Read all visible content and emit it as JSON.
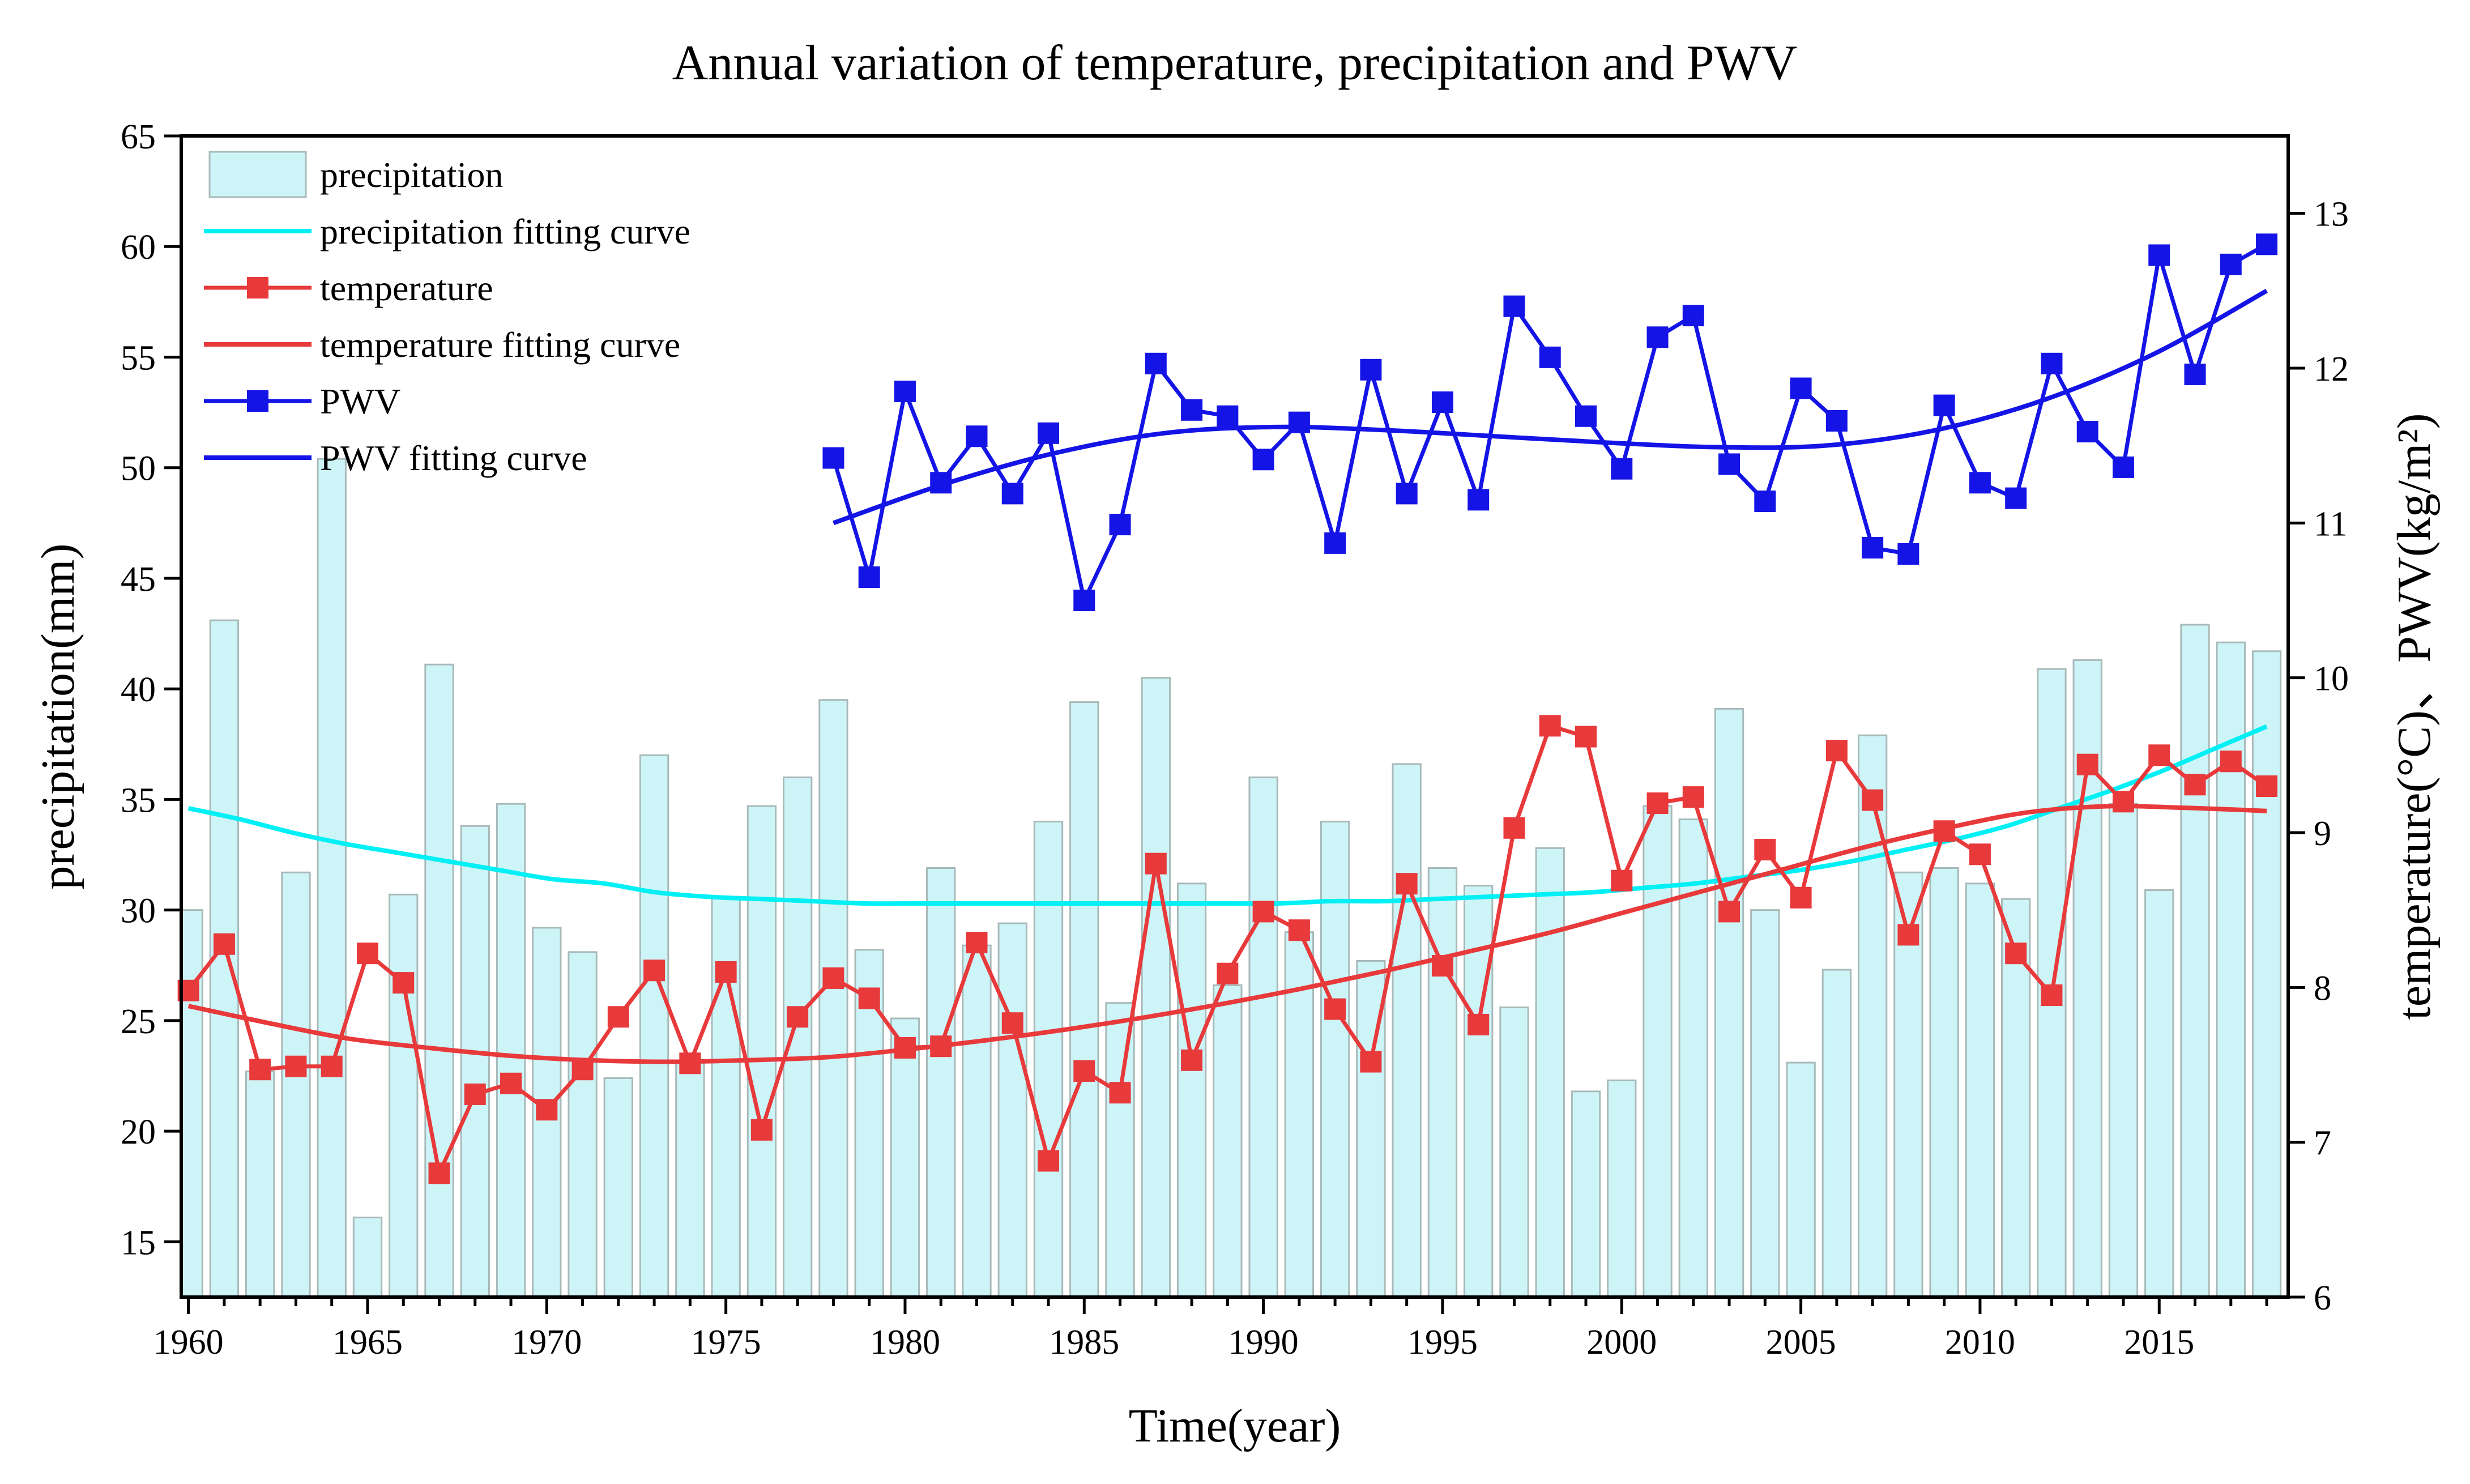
{
  "chart_data": {
    "type": "bar+line",
    "title": "Annual variation of temperature, precipitation and PWV",
    "xlabel": "Time(year)",
    "ylabel_left": "precipitation(mm)",
    "ylabel_right": "temperature(°C)、PWV(kg/m²)",
    "xlim": [
      1959.8,
      2018.6
    ],
    "ylim_left": [
      12.5,
      65
    ],
    "ylim_right": [
      6,
      13.5
    ],
    "x_ticks": [
      1960,
      1965,
      1970,
      1975,
      1980,
      1985,
      1990,
      1995,
      2000,
      2005,
      2010,
      2015
    ],
    "y_left_ticks": [
      15,
      20,
      25,
      30,
      35,
      40,
      45,
      50,
      55,
      60,
      65
    ],
    "y_right_ticks": [
      6,
      7,
      8,
      9,
      10,
      11,
      12,
      13
    ],
    "colors": {
      "precipitation": "#cdf5f7",
      "precipitation_fit": "#00f0f5",
      "temperature": "#e8393b",
      "pwv": "#1414e6"
    },
    "legend": [
      "precipitation",
      "precipitation fitting curve",
      "temperature",
      "temperature fitting curve",
      "PWV",
      "PWV fitting curve"
    ],
    "legend_position": "top-left",
    "years": [
      1960,
      1961,
      1962,
      1963,
      1964,
      1965,
      1966,
      1967,
      1968,
      1969,
      1970,
      1971,
      1972,
      1973,
      1974,
      1975,
      1976,
      1977,
      1978,
      1979,
      1980,
      1981,
      1982,
      1983,
      1984,
      1985,
      1986,
      1987,
      1988,
      1989,
      1990,
      1991,
      1992,
      1993,
      1994,
      1995,
      1996,
      1997,
      1998,
      1999,
      2000,
      2001,
      2002,
      2003,
      2004,
      2005,
      2006,
      2007,
      2008,
      2009,
      2010,
      2011,
      2012,
      2013,
      2014,
      2015,
      2016,
      2017,
      2018
    ],
    "series": [
      {
        "name": "precipitation",
        "axis": "left",
        "kind": "bar",
        "values": [
          30.0,
          43.1,
          22.7,
          31.7,
          50.4,
          16.1,
          30.7,
          41.1,
          33.8,
          34.8,
          29.2,
          28.1,
          22.4,
          37.0,
          23.1,
          30.6,
          34.7,
          36.0,
          39.5,
          28.2,
          25.1,
          31.9,
          28.4,
          29.4,
          34.0,
          39.4,
          25.8,
          40.5,
          31.2,
          26.6,
          36.0,
          29.0,
          34.0,
          27.7,
          36.6,
          31.9,
          31.1,
          25.6,
          32.8,
          21.8,
          22.3,
          34.7,
          34.1,
          39.1,
          30.0,
          23.1,
          27.3,
          37.9,
          31.7,
          31.9,
          31.2,
          30.5,
          40.9,
          41.3,
          34.8,
          30.9,
          42.9,
          42.1,
          41.7
        ]
      },
      {
        "name": "precipitation fitting curve",
        "axis": "left",
        "kind": "fit",
        "values": [
          34.6,
          34.1,
          33.5,
          33.0,
          32.6,
          32.2,
          31.8,
          31.4,
          31.2,
          30.8,
          30.6,
          30.5,
          30.4,
          30.3,
          30.3,
          30.3,
          30.3,
          30.3,
          30.3,
          30.3,
          30.3,
          30.3,
          30.4,
          30.4,
          30.5,
          30.6,
          30.7,
          30.8,
          31.0,
          31.2,
          31.5,
          31.8,
          32.2,
          32.7,
          33.2,
          33.8,
          34.6,
          35.4,
          36.3,
          37.3,
          38.3
        ]
      },
      {
        "name": "temperature",
        "axis": "right",
        "kind": "line-marker",
        "values": [
          7.98,
          8.28,
          7.47,
          7.49,
          7.49,
          8.22,
          8.03,
          6.8,
          7.31,
          7.38,
          7.21,
          7.47,
          7.81,
          8.11,
          7.51,
          8.1,
          7.08,
          7.81,
          8.06,
          7.93,
          7.61,
          7.62,
          8.29,
          7.77,
          6.88,
          7.46,
          7.32,
          8.8,
          7.53,
          8.09,
          8.49,
          8.37,
          7.86,
          7.52,
          8.67,
          8.14,
          7.76,
          9.03,
          9.69,
          9.62,
          8.69,
          9.19,
          9.23,
          8.49,
          8.89,
          8.58,
          9.53,
          9.21,
          8.34,
          9.01,
          8.86,
          8.22,
          7.95,
          9.44,
          9.2,
          9.5,
          9.31,
          9.46,
          9.3
        ]
      },
      {
        "name": "temperature fitting curve",
        "axis": "right",
        "kind": "fit",
        "values": [
          7.88,
          7.77,
          7.67,
          7.61,
          7.56,
          7.53,
          7.52,
          7.53,
          7.55,
          7.6,
          7.66,
          7.73,
          7.81,
          7.9,
          8.0,
          8.11,
          8.23,
          8.35,
          8.49,
          8.63,
          8.77,
          8.91,
          9.03,
          9.13,
          9.17,
          9.16,
          9.14
        ]
      },
      {
        "name": "PWV",
        "axis": "right",
        "kind": "line-marker",
        "years_range": [
          1978,
          2018
        ],
        "values": [
          11.42,
          10.65,
          11.85,
          11.26,
          11.56,
          11.19,
          11.58,
          10.5,
          10.99,
          12.03,
          11.73,
          11.69,
          11.41,
          11.65,
          10.87,
          11.99,
          11.19,
          11.78,
          11.15,
          12.4,
          12.07,
          11.69,
          11.35,
          12.2,
          12.34,
          11.38,
          11.14,
          11.87,
          11.66,
          10.84,
          10.8,
          11.76,
          11.26,
          11.16,
          12.03,
          11.59,
          11.36,
          12.73,
          11.96,
          12.67,
          12.8
        ]
      },
      {
        "name": "PWV fitting curve",
        "axis": "right",
        "kind": "fit",
        "values": [
          11.0,
          11.25,
          11.45,
          11.58,
          11.62,
          11.6,
          11.56,
          11.52,
          11.49,
          11.5,
          11.6,
          11.8,
          12.1,
          12.5
        ]
      }
    ]
  }
}
